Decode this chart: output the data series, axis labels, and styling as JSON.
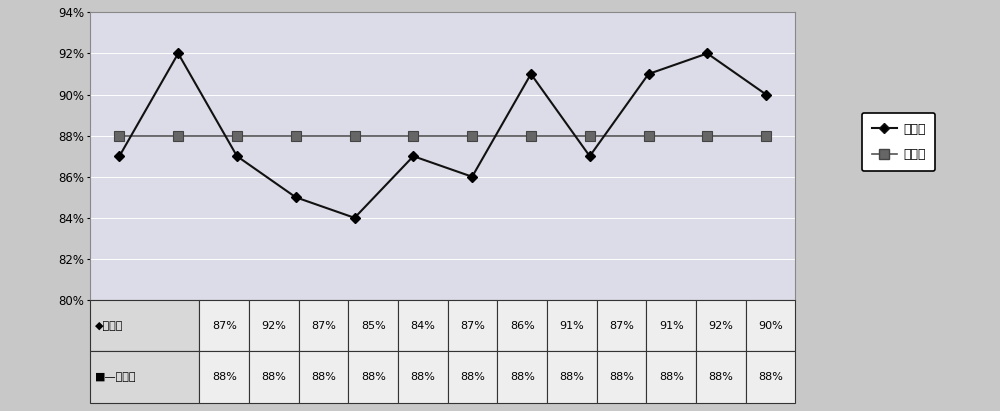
{
  "x": [
    1,
    2,
    3,
    4,
    5,
    6,
    7,
    8,
    9,
    10,
    11,
    12
  ],
  "he_ge_lv": [
    0.87,
    0.92,
    0.87,
    0.85,
    0.84,
    0.87,
    0.86,
    0.91,
    0.87,
    0.91,
    0.92,
    0.9
  ],
  "ping_jun_zhi": [
    0.88,
    0.88,
    0.88,
    0.88,
    0.88,
    0.88,
    0.88,
    0.88,
    0.88,
    0.88,
    0.88,
    0.88
  ],
  "ylim": [
    0.8,
    0.94
  ],
  "yticks": [
    0.8,
    0.82,
    0.84,
    0.86,
    0.88,
    0.9,
    0.92,
    0.94
  ],
  "line1_color": "#111111",
  "line2_color": "#555555",
  "line1_label": "合格率",
  "line2_label": "平均値",
  "table_row1_label": "合格率",
  "table_row2_label": "平均値",
  "table_row1_values": [
    "87%",
    "92%",
    "87%",
    "85%",
    "84%",
    "87%",
    "86%",
    "91%",
    "87%",
    "91%",
    "92%",
    "90%"
  ],
  "table_row2_values": [
    "88%",
    "88%",
    "88%",
    "88%",
    "88%",
    "88%",
    "88%",
    "88%",
    "88%",
    "88%",
    "88%",
    "88%"
  ],
  "outer_bg": "#c8c8c8",
  "chart_bg": "#e8e8e8",
  "plot_bg": "#e8e8ef"
}
